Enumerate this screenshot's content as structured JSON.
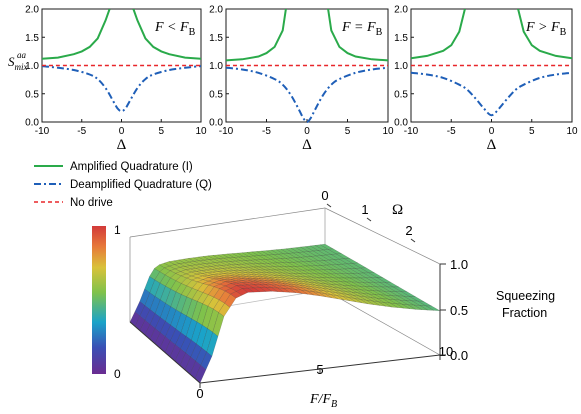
{
  "colors": {
    "amplified": "#2aaa4a",
    "deamplified": "#1f5fb8",
    "nodrive": "#e8262a",
    "axis": "#1a1a1a"
  },
  "chart_data": [
    {
      "type": "line",
      "panel": "left",
      "title": "F < F_B",
      "xlabel": "Δ",
      "ylabel": "S_mix^aa",
      "xlim": [
        -10,
        10
      ],
      "ylim": [
        0.0,
        2.0
      ],
      "xticks": [
        "-10",
        "-5",
        "0",
        "5",
        "10"
      ],
      "yticks": [
        "0.0",
        "0.5",
        "1.0",
        "1.5",
        "2.0"
      ],
      "series": [
        {
          "name": "Amplified Quadrature (I)",
          "x": [
            -10,
            -8,
            -6,
            -5,
            -4,
            -3,
            -2,
            -1.5,
            1.5,
            2,
            3,
            4,
            5,
            6,
            8,
            10
          ],
          "values": [
            1.12,
            1.14,
            1.2,
            1.25,
            1.33,
            1.48,
            1.8,
            2.0,
            2.0,
            1.8,
            1.48,
            1.33,
            1.25,
            1.2,
            1.14,
            1.12
          ]
        },
        {
          "name": "Deamplified Quadrature (Q)",
          "x": [
            -10,
            -8,
            -6,
            -4,
            -3,
            -2,
            -1,
            -0.5,
            0,
            0.5,
            1,
            2,
            3,
            4,
            6,
            8,
            10
          ],
          "values": [
            0.99,
            0.96,
            0.92,
            0.84,
            0.76,
            0.6,
            0.36,
            0.24,
            0.19,
            0.24,
            0.36,
            0.6,
            0.76,
            0.84,
            0.92,
            0.96,
            0.99
          ]
        },
        {
          "name": "No drive",
          "x": [
            -10,
            10
          ],
          "values": [
            1.0,
            1.0
          ]
        }
      ]
    },
    {
      "type": "line",
      "panel": "middle",
      "title": "F = F_B",
      "xlabel": "Δ",
      "xlim": [
        -10,
        10
      ],
      "ylim": [
        0.0,
        2.0
      ],
      "xticks": [
        "-10",
        "-5",
        "0",
        "5",
        "10"
      ],
      "yticks": [
        "0.0",
        "0.5",
        "1.0",
        "1.5",
        "2.0"
      ],
      "series": [
        {
          "name": "Amplified Quadrature (I)",
          "x": [
            -10,
            -8,
            -6,
            -5,
            -4,
            -3,
            -2.6,
            2.6,
            3,
            4,
            5,
            6,
            8,
            10
          ],
          "values": [
            1.09,
            1.11,
            1.16,
            1.22,
            1.33,
            1.62,
            2.0,
            2.0,
            1.62,
            1.33,
            1.22,
            1.16,
            1.11,
            1.09
          ]
        },
        {
          "name": "Deamplified Quadrature (Q)",
          "x": [
            -10,
            -8,
            -6,
            -4,
            -3,
            -2,
            -1,
            -0.5,
            0,
            0.5,
            1,
            2,
            3,
            4,
            6,
            8,
            10
          ],
          "values": [
            0.96,
            0.93,
            0.87,
            0.76,
            0.66,
            0.48,
            0.22,
            0.08,
            0.0,
            0.08,
            0.22,
            0.48,
            0.66,
            0.76,
            0.87,
            0.93,
            0.96
          ]
        },
        {
          "name": "No drive",
          "x": [
            -10,
            10
          ],
          "values": [
            1.0,
            1.0
          ]
        }
      ]
    },
    {
      "type": "line",
      "panel": "right",
      "title": "F > F_B",
      "xlabel": "Δ",
      "xlim": [
        -10,
        10
      ],
      "ylim": [
        0.0,
        2.0
      ],
      "xticks": [
        "-10",
        "-5",
        "0",
        "5",
        "10"
      ],
      "yticks": [
        "0.0",
        "0.5",
        "1.0",
        "1.5",
        "2.0"
      ],
      "series": [
        {
          "name": "Amplified Quadrature (I)",
          "x": [
            -10,
            -8,
            -6,
            -5,
            -4,
            -3.3,
            3.3,
            4,
            5,
            6,
            8,
            10
          ],
          "values": [
            1.13,
            1.17,
            1.26,
            1.36,
            1.6,
            2.0,
            2.0,
            1.6,
            1.36,
            1.26,
            1.17,
            1.13
          ]
        },
        {
          "name": "Deamplified Quadrature (Q)",
          "x": [
            -10,
            -8,
            -6,
            -4,
            -3,
            -2,
            -1,
            0,
            1,
            2,
            3,
            4,
            6,
            8,
            10
          ],
          "values": [
            0.87,
            0.84,
            0.78,
            0.66,
            0.57,
            0.42,
            0.25,
            0.12,
            0.25,
            0.42,
            0.57,
            0.66,
            0.78,
            0.84,
            0.87
          ]
        },
        {
          "name": "No drive",
          "x": [
            -10,
            10
          ],
          "values": [
            1.0,
            1.0
          ]
        }
      ]
    },
    {
      "type": "surface",
      "xlabel": "F/F_B",
      "ylabel": "Ω",
      "zlabel": "Squeezing Fraction",
      "xlim": [
        0,
        10
      ],
      "ylim": [
        0,
        2.5
      ],
      "zlim": [
        0.0,
        1.0
      ],
      "xticks": [
        "0",
        "5",
        "10"
      ],
      "yticks": [
        "0",
        "1",
        "2"
      ],
      "zticks": [
        "0.0",
        "0.5",
        "1.0"
      ],
      "colorbar": {
        "min_label": "0",
        "max_label": "1"
      },
      "z_at_omega0": {
        "F": [
          0,
          0.5,
          1,
          1.5,
          2,
          3,
          4,
          5,
          6,
          7,
          8,
          9,
          10
        ],
        "values": [
          0.0,
          0.3,
          0.75,
          0.95,
          1.0,
          0.98,
          0.93,
          0.86,
          0.78,
          0.7,
          0.63,
          0.57,
          0.52
        ]
      }
    }
  ],
  "legend": [
    {
      "label": "Amplified Quadrature (I)"
    },
    {
      "label": "Deamplified Quadrature (Q)"
    },
    {
      "label": "No drive"
    }
  ]
}
